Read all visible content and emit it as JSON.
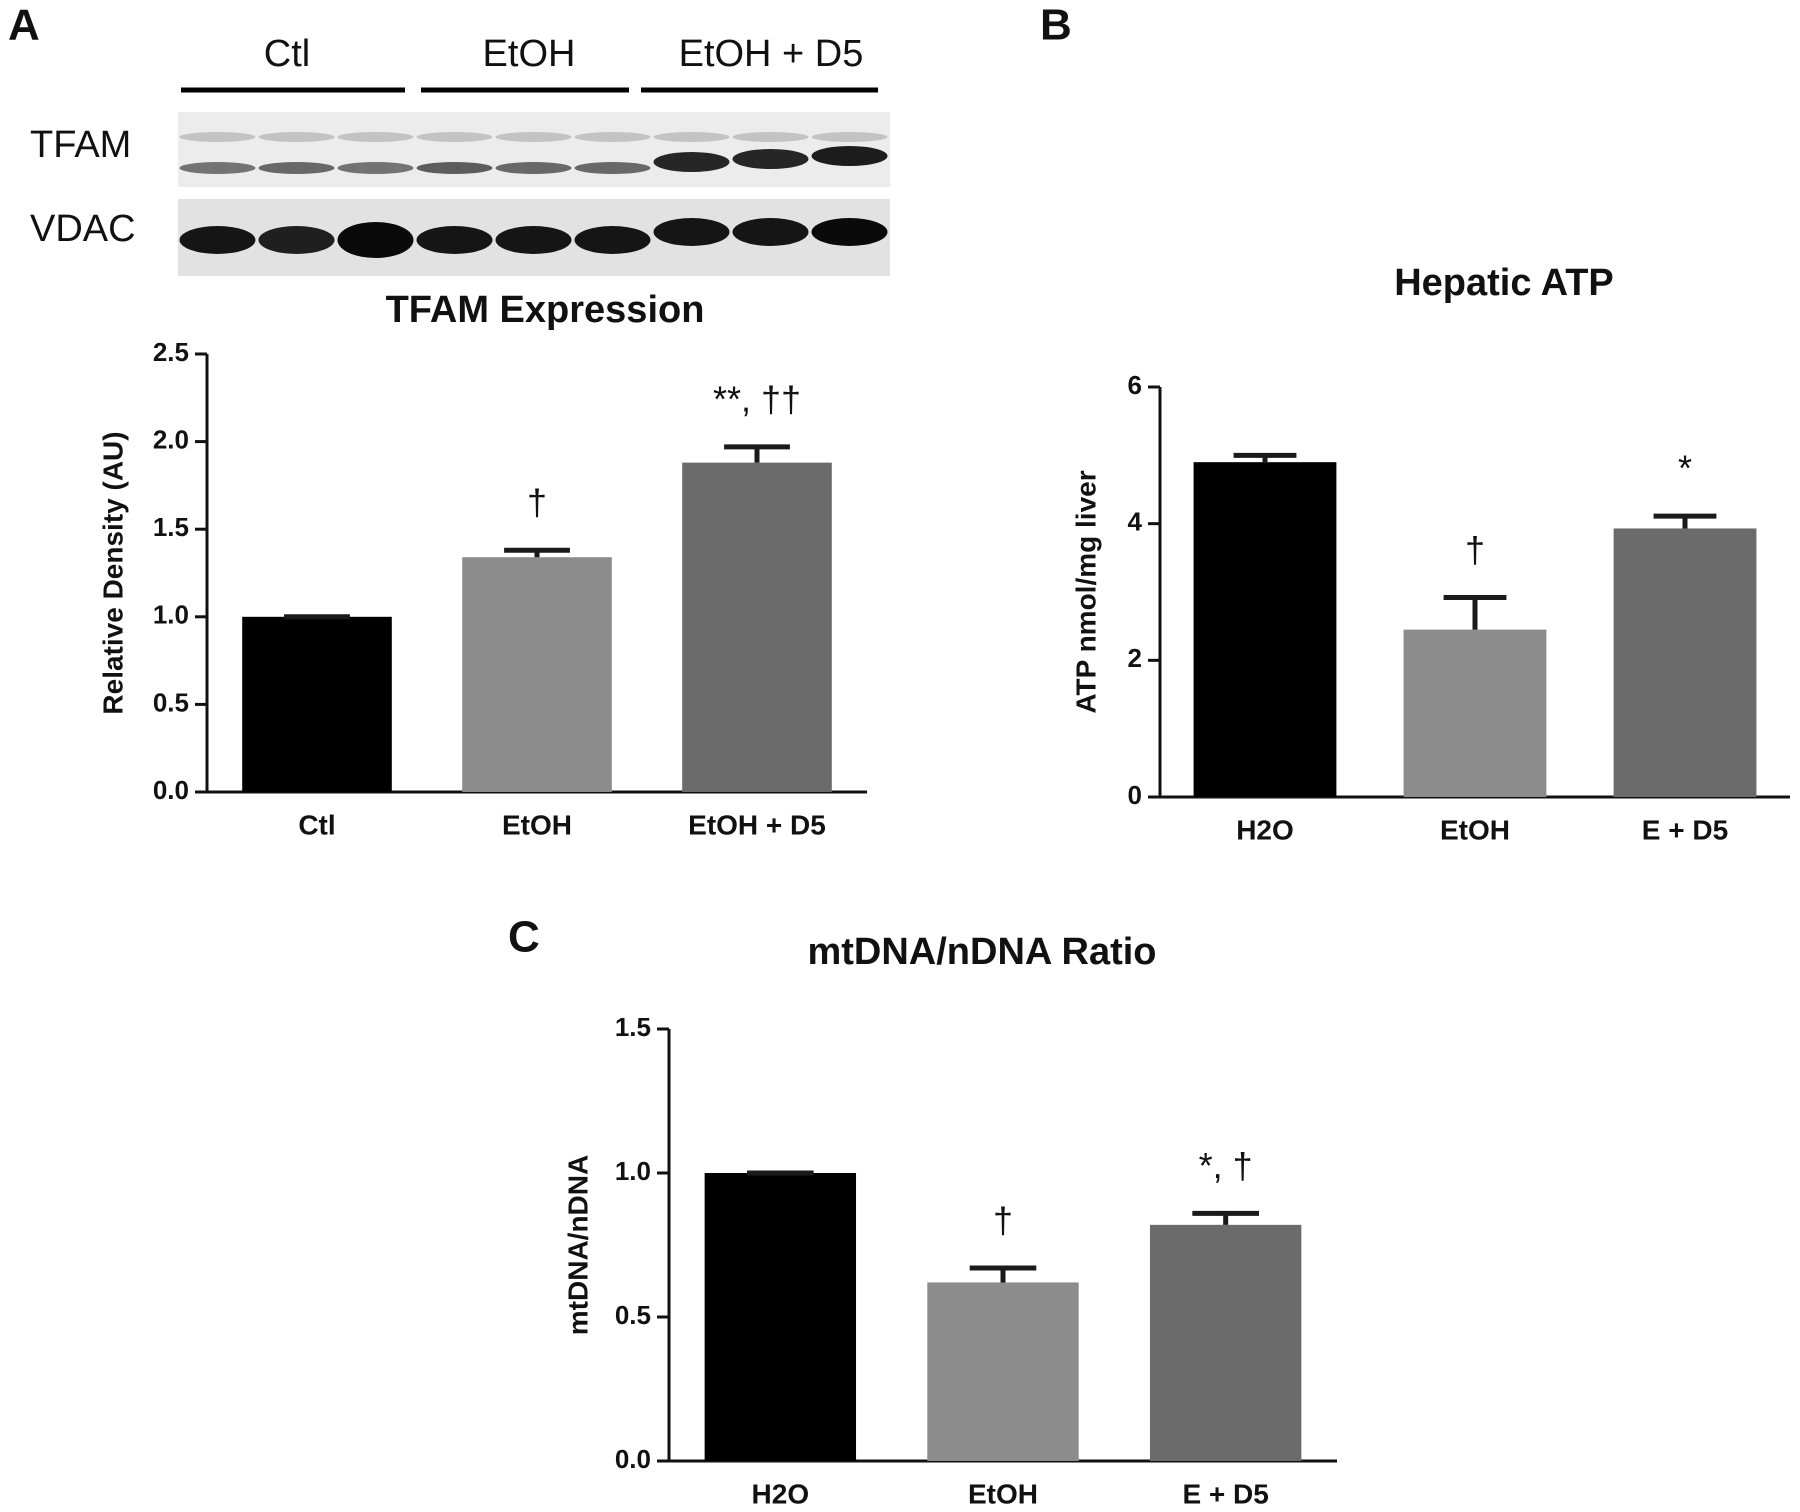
{
  "panels": [
    "A",
    "B",
    "C"
  ],
  "blot": {
    "groups": [
      "Ctl",
      "EtOH",
      "EtOH + D5"
    ],
    "rows": [
      "TFAM",
      "VDAC"
    ]
  },
  "chart_data": [
    {
      "type": "bar",
      "title": "TFAM Expression",
      "y_label": "Relative Density (AU)",
      "categories": [
        "Ctl",
        "EtOH",
        "EtOH + D5"
      ],
      "values": [
        1.0,
        1.34,
        1.88
      ],
      "errors": [
        0,
        0.04,
        0.09
      ],
      "annotations": [
        null,
        "†",
        "**, ††"
      ],
      "colors": [
        "#000000",
        "#8c8c8c",
        "#6b6b6b"
      ],
      "ylim": [
        0,
        2.5
      ],
      "yticks": [
        {
          "value": 0,
          "label": "0.0"
        },
        0.5,
        {
          "value": 1,
          "label": "1.0"
        },
        1.5,
        {
          "value": 2,
          "label": "2.0"
        },
        2.5
      ]
    },
    {
      "type": "bar",
      "title": "Hepatic ATP",
      "y_label": "ATP nmol/mg liver",
      "categories": [
        "H2O",
        "EtOH",
        "E + D5"
      ],
      "values": [
        4.9,
        2.45,
        3.93
      ],
      "errors": [
        0.1,
        0.47,
        0.18
      ],
      "annotations": [
        null,
        "†",
        "*"
      ],
      "colors": [
        "#000000",
        "#8c8c8c",
        "#6b6b6b"
      ],
      "ylim": [
        0,
        6
      ],
      "yticks": [
        0,
        2,
        4,
        6
      ]
    },
    {
      "type": "bar",
      "title": "mtDNA/nDNA Ratio",
      "y_label": "mtDNA/nDNA",
      "categories": [
        "H2O",
        "EtOH",
        "E + D5"
      ],
      "values": [
        1.0,
        0.62,
        0.82
      ],
      "errors": [
        0,
        0.05,
        0.04
      ],
      "annotations": [
        null,
        "†",
        "*, †"
      ],
      "colors": [
        "#000000",
        "#8c8c8c",
        "#6b6b6b"
      ],
      "ylim": [
        0,
        1.5
      ],
      "yticks": [
        {
          "value": 0,
          "label": "0.0"
        },
        0.5,
        {
          "value": 1,
          "label": "1.0"
        },
        1.5
      ]
    }
  ]
}
